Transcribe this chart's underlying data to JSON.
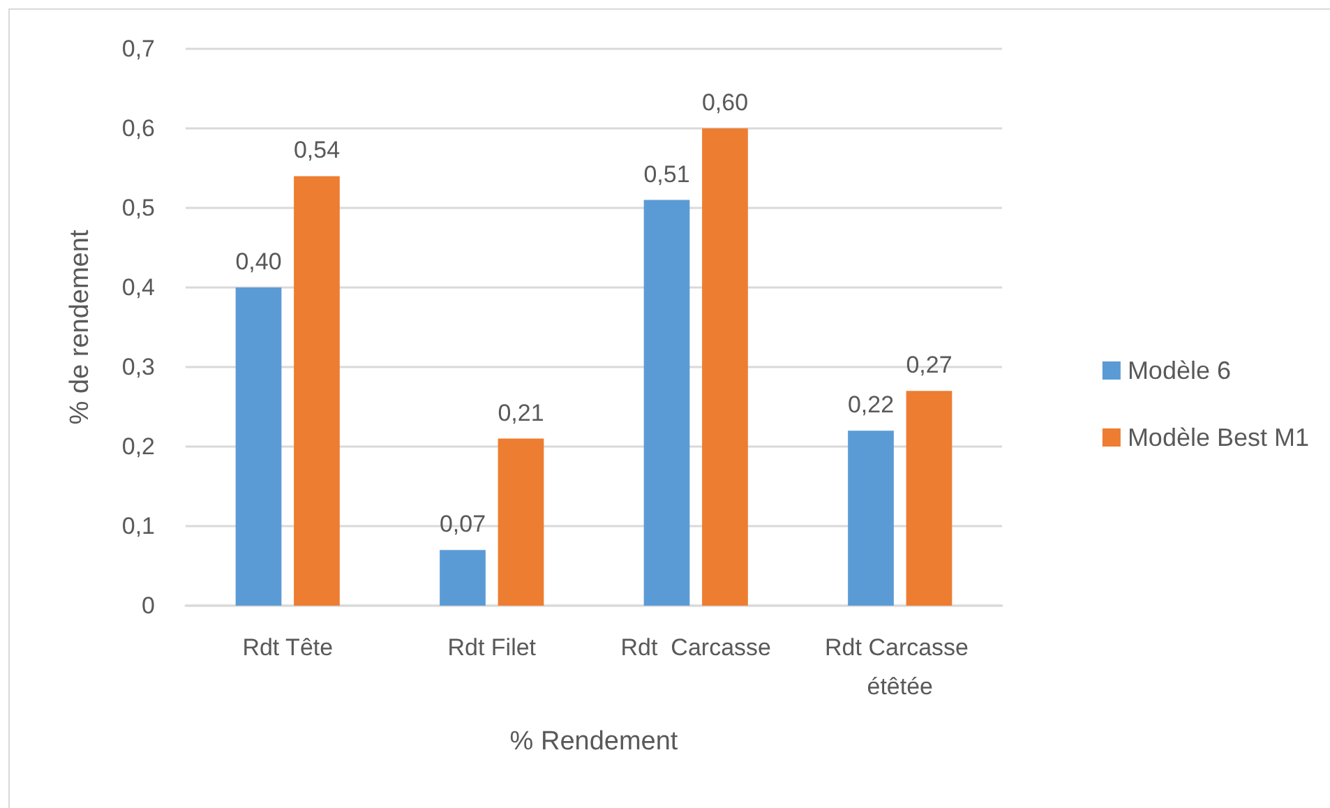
{
  "chart_data": {
    "type": "bar",
    "xlabel": "% Rendement",
    "ylabel": "% de rendement",
    "categories": [
      "Rdt Tête",
      "Rdt Filet",
      "Rdt  Carcasse",
      "Rdt Carcasse étêtée"
    ],
    "series": [
      {
        "name": "Modèle 6",
        "color": "#5b9bd5",
        "values": [
          0.4,
          0.07,
          0.51,
          0.22
        ],
        "value_labels": [
          "0,40",
          "0,07",
          "0,51",
          "0,22"
        ]
      },
      {
        "name": "Modèle Best M1",
        "color": "#ed7d31",
        "values": [
          0.54,
          0.21,
          0.6,
          0.27
        ],
        "value_labels": [
          "0,54",
          "0,21",
          "0,60",
          "0,27"
        ]
      }
    ],
    "ylim": [
      0,
      0.7
    ],
    "yticks": [
      0,
      {
        "value": 0.1,
        "label": "0,1"
      },
      {
        "value": 0.2,
        "label": "0,2"
      },
      {
        "value": 0.3,
        "label": "0,3"
      },
      {
        "value": 0.4,
        "label": "0,4"
      },
      {
        "value": 0.5,
        "label": "0,5"
      },
      {
        "value": 0.6,
        "label": "0,6"
      },
      {
        "value": 0.7,
        "label": "0,7"
      }
    ],
    "grid": "y",
    "legend": "right"
  }
}
